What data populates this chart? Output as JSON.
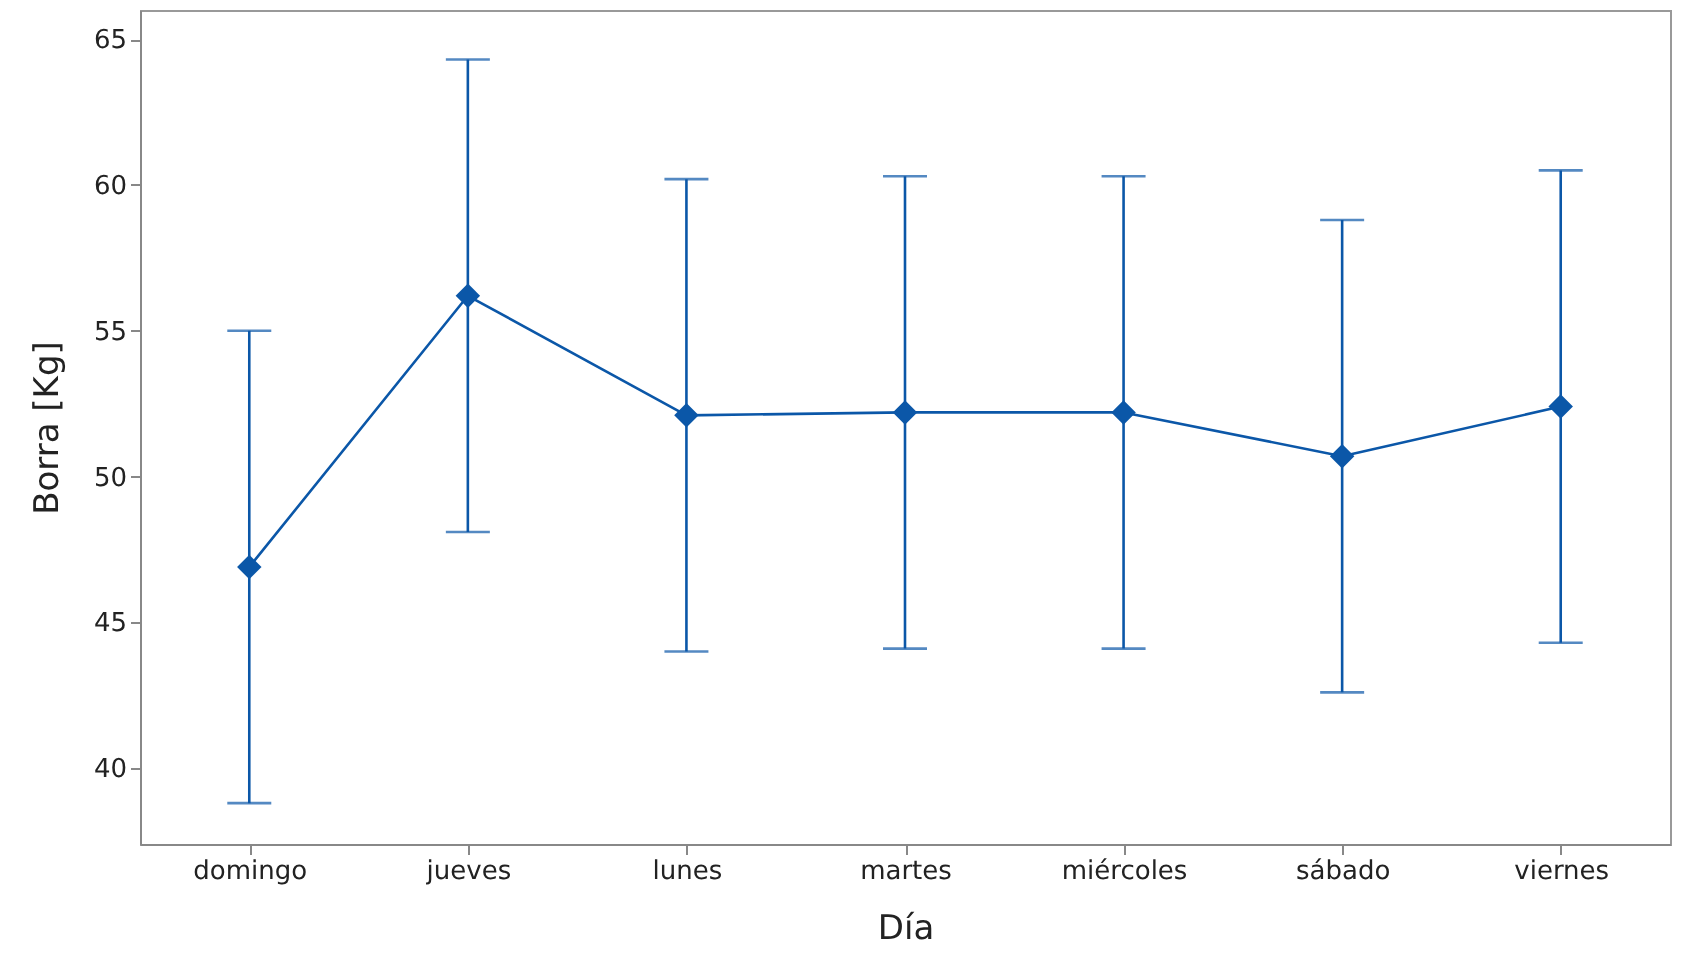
{
  "chart_data": {
    "type": "line",
    "xlabel": "Día",
    "ylabel": "Borra [Kg]",
    "categories": [
      "domingo",
      "jueves",
      "lunes",
      "martes",
      "miércoles",
      "sábado",
      "viernes"
    ],
    "series": [
      {
        "color": "#0b57a8",
        "values": [
          46.9,
          56.2,
          52.1,
          52.2,
          52.2,
          50.7,
          52.4
        ],
        "errors": [
          8.1,
          8.1,
          8.1,
          8.1,
          8.1,
          8.1,
          8.1
        ]
      }
    ],
    "ylim": [
      37.4,
      66
    ],
    "yticks": [
      40,
      45,
      50,
      55,
      60,
      65
    ],
    "grid": false,
    "marker": "diamond",
    "line_style": "solid"
  }
}
